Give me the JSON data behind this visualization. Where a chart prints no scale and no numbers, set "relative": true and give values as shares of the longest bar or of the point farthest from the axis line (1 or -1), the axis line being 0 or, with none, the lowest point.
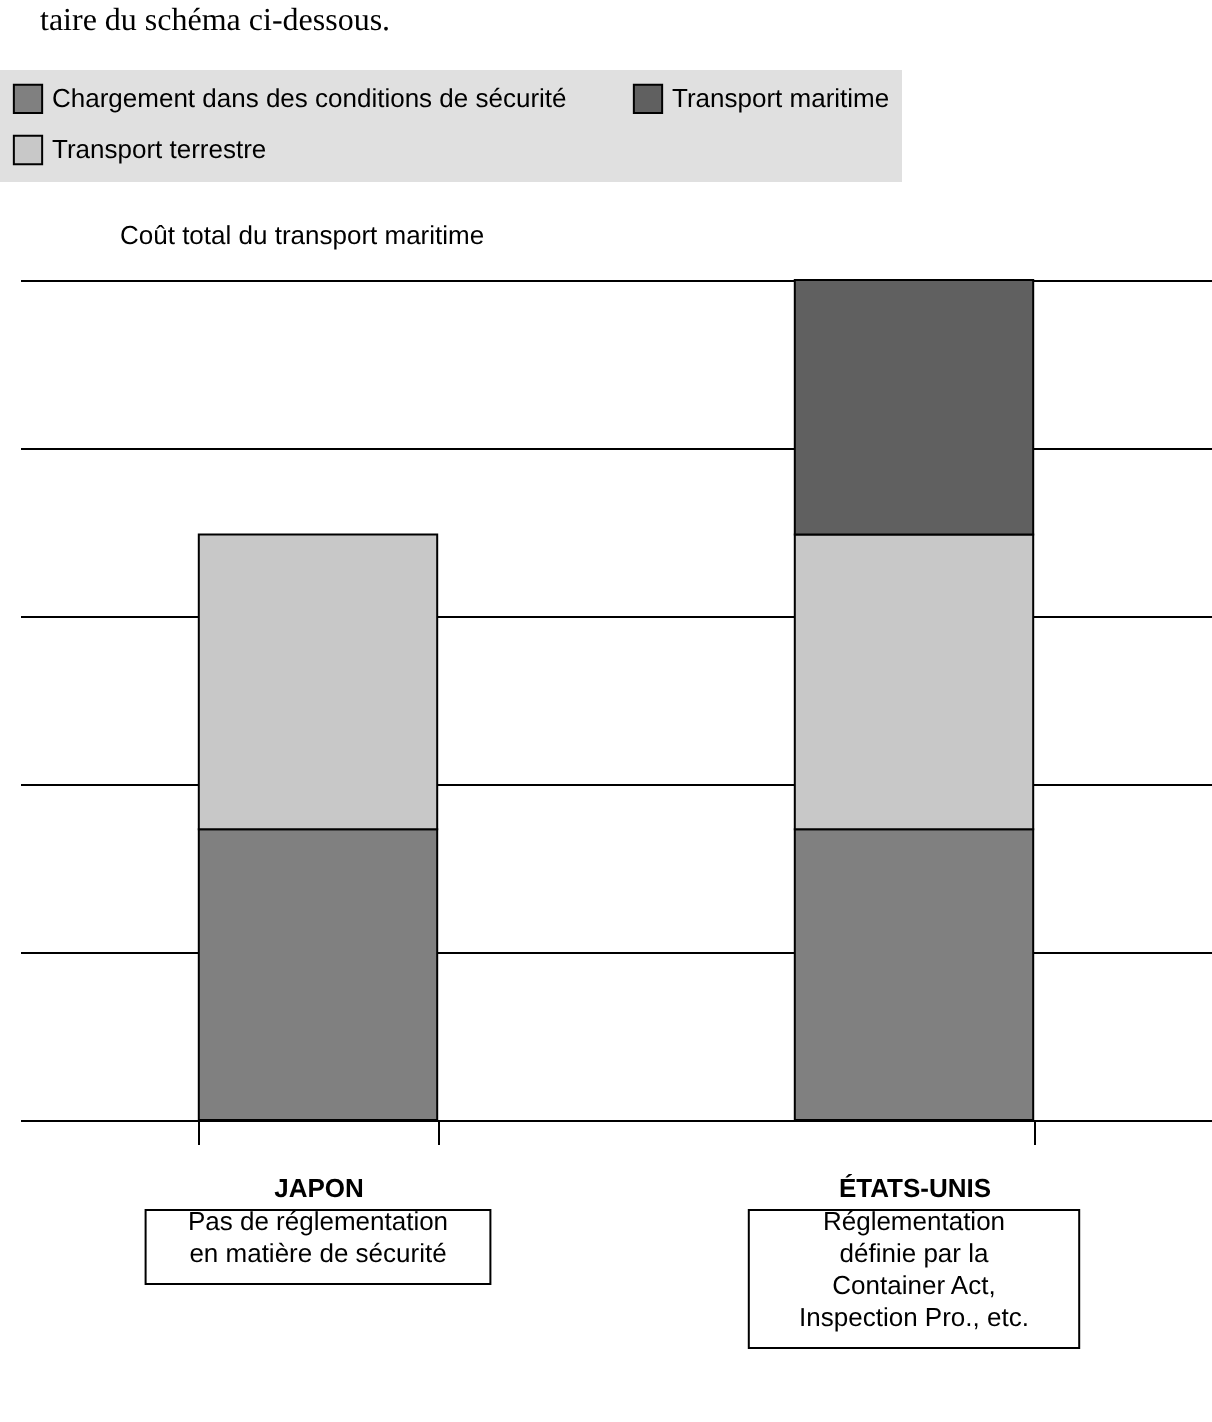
{
  "chart_data": {
    "type": "bar",
    "stacked": true,
    "relative": true,
    "grid": "y",
    "legend": "top",
    "ylabel": "Coût total du transport maritime",
    "categories": [
      "JAPON",
      "ÉTATS-UNIS"
    ],
    "series": [
      {
        "name": "Chargement dans des conditions de sécurité",
        "color": "#808080",
        "values": [
          0.346,
          0.346
        ]
      },
      {
        "name": "Transport terrestre",
        "color": "#c8c8c8",
        "values": [
          0.351,
          0.351
        ]
      },
      {
        "name": "Transport maritime",
        "color": "#606060",
        "values": [
          null,
          0.303
        ]
      }
    ],
    "annotations": [
      "taire du schéma ci-dessous.",
      "Pas de réglementation\nen matière de sécurité",
      "Réglementation\ndéfinie par la\nContainer Act,\nInspection Pro., etc."
    ]
  }
}
